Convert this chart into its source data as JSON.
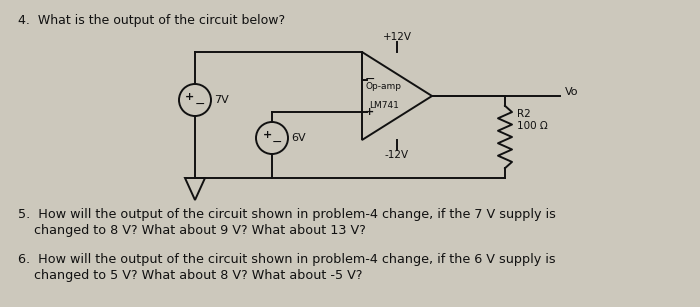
{
  "bg_color": "#ccc8bc",
  "text_color": "#111111",
  "circuit_color": "#111111",
  "q4_text": "4.  What is the output of the circuit below?",
  "q5_line1": "5.  How will the output of the circuit shown in problem-4 change, if the 7 V supply is",
  "q5_line2": "    changed to 8 V? What about 9 V? What about 13 V?",
  "q6_line1": "6.  How will the output of the circuit shown in problem-4 change, if the 6 V supply is",
  "q6_line2": "    changed to 5 V? What about 8 V? What about -5 V?",
  "label_7v": "7V",
  "label_6v": "6V",
  "label_plus12v": "+12V",
  "label_minus12v": "-12V",
  "label_opamp_line1": "Op-amp",
  "label_opamp_line2": "LM741",
  "label_vo": "Vo",
  "label_r2": "R2",
  "label_r2val": "100 Ω",
  "figsize": [
    7.0,
    3.07
  ],
  "dpi": 100
}
